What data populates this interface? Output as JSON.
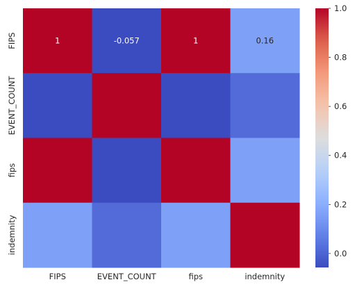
{
  "chart_data": {
    "type": "heatmap",
    "title": "",
    "xlabel": "",
    "ylabel": "",
    "x_categories": [
      "FIPS",
      "EVENT_COUNT",
      "fips",
      "indemnity"
    ],
    "y_categories": [
      "FIPS",
      "EVENT_COUNT",
      "fips",
      "indemnity"
    ],
    "values": [
      [
        1,
        -0.057,
        1,
        0.16
      ],
      [
        -0.057,
        1,
        -0.057,
        0.02
      ],
      [
        1,
        -0.057,
        1,
        0.16
      ],
      [
        0.16,
        0.02,
        0.16,
        1
      ]
    ],
    "annotations": [
      [
        "1",
        "-0.057",
        "1",
        "0.16"
      ],
      [
        "",
        "",
        "",
        ""
      ],
      [
        "",
        "",
        "",
        ""
      ],
      [
        "",
        "",
        "",
        ""
      ]
    ],
    "colormap": "coolwarm",
    "vmin": -0.057,
    "vmax": 1,
    "colorbar": {
      "ticks": [
        0.0,
        0.2,
        0.4,
        0.6,
        0.8,
        1.0
      ],
      "tick_labels": [
        "0.0",
        "0.2",
        "0.4",
        "0.6",
        "0.8",
        "1.0"
      ]
    },
    "grid": false,
    "legend": "colorbar-right"
  }
}
